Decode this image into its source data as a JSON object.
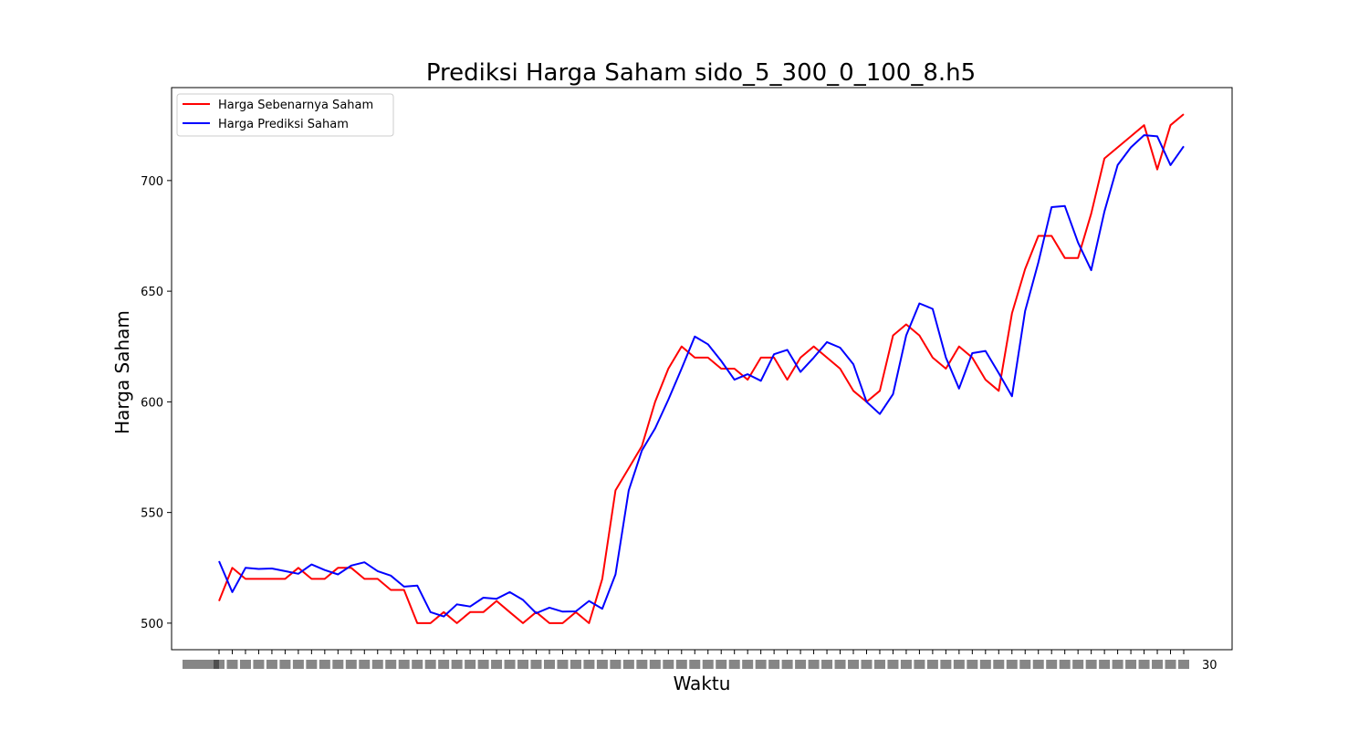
{
  "chart_data": {
    "type": "line",
    "title": "Prediksi Harga Saham sido_5_300_0_100_8.h5",
    "xlabel": "Waktu",
    "ylabel": "Harga Saham",
    "ylim": [
      488,
      742
    ],
    "yticks": [
      500,
      550,
      600,
      650,
      700
    ],
    "x_tick_labels_overlapping_dates": true,
    "x_last_tick_visible": "30",
    "legend": "upper-left",
    "grid": false,
    "series": [
      {
        "name": "Harga Sebenarnya Saham",
        "color": "#ff0000",
        "values": [
          510,
          525,
          520,
          520,
          520,
          520,
          525,
          520,
          520,
          525,
          525,
          520,
          520,
          515,
          515,
          500,
          500,
          505,
          500,
          505,
          505,
          510,
          505,
          500,
          505,
          500,
          500,
          505,
          500,
          520,
          560,
          570,
          580,
          600,
          615,
          625,
          620,
          620,
          615,
          615,
          610,
          620,
          620,
          610,
          620,
          625,
          620,
          615,
          605,
          600,
          605,
          630,
          635,
          630,
          620,
          615,
          625,
          620,
          610,
          605,
          640,
          660,
          675,
          675,
          665,
          665,
          685,
          710,
          715,
          720,
          725,
          705,
          725,
          730
        ]
      },
      {
        "name": "Harga Prediksi Saham",
        "color": "#0000ff",
        "values": [
          528,
          514,
          525,
          524.5,
          524.7,
          523.5,
          522.3,
          526.5,
          524,
          522,
          526,
          527.5,
          523.5,
          521.5,
          516.5,
          517,
          505,
          503,
          508.5,
          507.5,
          511.5,
          511,
          514,
          510.5,
          504.5,
          507,
          505.2,
          505.3,
          510,
          506.5,
          522,
          560,
          578,
          588,
          601,
          615,
          629.5,
          626,
          618.5,
          610,
          612.5,
          609.5,
          621.5,
          623.5,
          613.5,
          620,
          627,
          624.5,
          617,
          600,
          594.5,
          603.5,
          630,
          644.5,
          642,
          620,
          606,
          622,
          623,
          613,
          602.5,
          641,
          663,
          688,
          688.5,
          672,
          659.5,
          686,
          707,
          715,
          720.5,
          720,
          707,
          715.5
        ]
      }
    ]
  }
}
